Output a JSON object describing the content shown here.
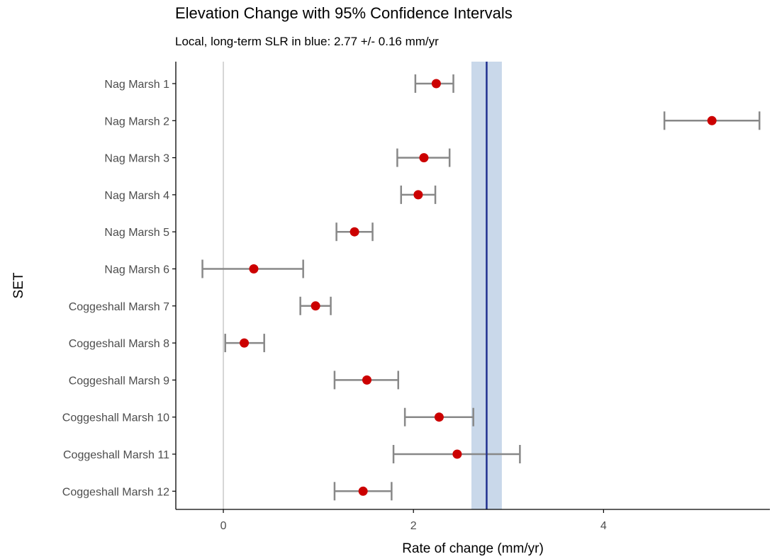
{
  "chart_data": {
    "type": "scatter",
    "title": "Elevation Change with 95% Confidence Intervals",
    "subtitle": "Local, long-term SLR in blue: 2.77 +/- 0.16 mm/yr",
    "xlabel": "Rate of change (mm/yr)",
    "ylabel": "SET",
    "xlim": [
      -0.5,
      5.75
    ],
    "xticks": [
      0,
      2,
      4
    ],
    "grid": false,
    "reference_line": {
      "x": 0
    },
    "slr": {
      "value": 2.77,
      "ci": 0.16
    },
    "categories": [
      "Nag Marsh 1",
      "Nag Marsh 2",
      "Nag Marsh 3",
      "Nag Marsh 4",
      "Nag Marsh 5",
      "Nag Marsh 6",
      "Coggeshall Marsh 7",
      "Coggeshall Marsh 8",
      "Coggeshall Marsh 9",
      "Coggeshall Marsh 10",
      "Coggeshall Marsh 11",
      "Coggeshall Marsh 12"
    ],
    "values": [
      2.24,
      5.14,
      2.11,
      2.05,
      1.38,
      0.32,
      0.97,
      0.22,
      1.51,
      2.27,
      2.46,
      1.47
    ],
    "ci_low": [
      2.02,
      4.64,
      1.83,
      1.87,
      1.19,
      -0.22,
      0.81,
      0.02,
      1.17,
      1.91,
      1.79,
      1.17
    ],
    "ci_high": [
      2.42,
      5.64,
      2.38,
      2.23,
      1.57,
      0.84,
      1.13,
      0.43,
      1.84,
      2.63,
      3.12,
      1.77
    ],
    "colors": {
      "point": "#CC0000",
      "errorbar": "#888888",
      "slr_line": "#1F2F8F",
      "slr_band": "#C9D8EA",
      "zero_line": "#BBBBBB",
      "axis": "#000000",
      "tick_label": "#4D4D4D"
    }
  }
}
